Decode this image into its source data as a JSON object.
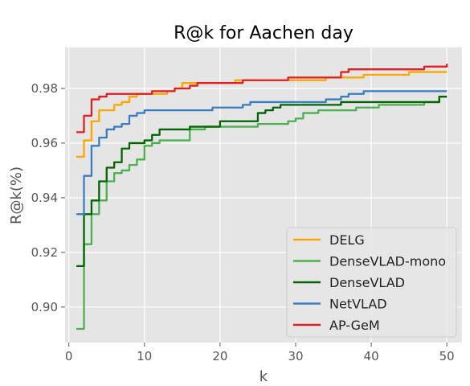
{
  "chart_data": {
    "type": "line",
    "title": "R@k for Aachen day",
    "xlabel": "k",
    "ylabel": "R@k(%)",
    "xlim": [
      -0.5,
      52
    ],
    "ylim": [
      0.887,
      0.995
    ],
    "xticks": [
      0,
      10,
      20,
      30,
      40,
      50
    ],
    "yticks": [
      0.9,
      0.92,
      0.94,
      0.96,
      0.98
    ],
    "grid": true,
    "legend_position": "lower-right",
    "background": "#e5e5e5",
    "x": [
      1,
      2,
      3,
      4,
      5,
      6,
      7,
      8,
      9,
      10,
      11,
      12,
      13,
      14,
      15,
      16,
      17,
      18,
      19,
      20,
      21,
      22,
      23,
      24,
      25,
      26,
      27,
      28,
      29,
      30,
      31,
      32,
      33,
      34,
      35,
      36,
      37,
      38,
      39,
      40,
      41,
      42,
      43,
      44,
      45,
      46,
      47,
      48,
      49,
      50
    ],
    "series": [
      {
        "name": "DELG",
        "color": "#ffa500",
        "values": [
          0.955,
          0.961,
          0.968,
          0.972,
          0.972,
          0.974,
          0.975,
          0.977,
          0.978,
          0.978,
          0.978,
          0.978,
          0.979,
          0.98,
          0.982,
          0.982,
          0.982,
          0.982,
          0.982,
          0.982,
          0.982,
          0.983,
          0.983,
          0.983,
          0.983,
          0.983,
          0.983,
          0.983,
          0.983,
          0.983,
          0.983,
          0.983,
          0.983,
          0.984,
          0.984,
          0.984,
          0.984,
          0.984,
          0.985,
          0.985,
          0.985,
          0.985,
          0.985,
          0.985,
          0.986,
          0.986,
          0.986,
          0.986,
          0.986,
          0.986
        ]
      },
      {
        "name": "DenseVLAD-mono",
        "color": "#4caf50",
        "values": [
          0.892,
          0.923,
          0.934,
          0.939,
          0.946,
          0.949,
          0.95,
          0.952,
          0.954,
          0.959,
          0.96,
          0.961,
          0.961,
          0.961,
          0.961,
          0.965,
          0.965,
          0.966,
          0.966,
          0.966,
          0.966,
          0.966,
          0.966,
          0.966,
          0.967,
          0.967,
          0.967,
          0.967,
          0.968,
          0.969,
          0.971,
          0.971,
          0.972,
          0.972,
          0.972,
          0.972,
          0.972,
          0.973,
          0.973,
          0.973,
          0.974,
          0.974,
          0.974,
          0.974,
          0.974,
          0.974,
          0.975,
          0.975,
          0.977,
          0.977
        ]
      },
      {
        "name": "DenseVLAD",
        "color": "#006400",
        "values": [
          0.915,
          0.934,
          0.939,
          0.946,
          0.951,
          0.953,
          0.958,
          0.96,
          0.96,
          0.961,
          0.963,
          0.965,
          0.965,
          0.965,
          0.965,
          0.966,
          0.966,
          0.966,
          0.966,
          0.968,
          0.968,
          0.968,
          0.968,
          0.968,
          0.971,
          0.972,
          0.973,
          0.974,
          0.974,
          0.974,
          0.974,
          0.974,
          0.974,
          0.974,
          0.974,
          0.975,
          0.975,
          0.975,
          0.975,
          0.975,
          0.975,
          0.975,
          0.975,
          0.975,
          0.975,
          0.975,
          0.975,
          0.975,
          0.977,
          0.977
        ]
      },
      {
        "name": "NetVLAD",
        "color": "#3a7ebf",
        "values": [
          0.934,
          0.948,
          0.959,
          0.962,
          0.965,
          0.966,
          0.967,
          0.97,
          0.971,
          0.972,
          0.972,
          0.972,
          0.972,
          0.972,
          0.972,
          0.972,
          0.972,
          0.972,
          0.973,
          0.973,
          0.973,
          0.973,
          0.974,
          0.975,
          0.975,
          0.975,
          0.975,
          0.975,
          0.975,
          0.975,
          0.975,
          0.975,
          0.975,
          0.976,
          0.976,
          0.977,
          0.978,
          0.978,
          0.979,
          0.979,
          0.979,
          0.979,
          0.979,
          0.979,
          0.979,
          0.979,
          0.979,
          0.979,
          0.979,
          0.979
        ]
      },
      {
        "name": "AP-GeM",
        "color": "#e02020",
        "values": [
          0.964,
          0.97,
          0.976,
          0.977,
          0.978,
          0.978,
          0.978,
          0.978,
          0.978,
          0.978,
          0.979,
          0.979,
          0.979,
          0.98,
          0.98,
          0.981,
          0.982,
          0.982,
          0.982,
          0.982,
          0.982,
          0.982,
          0.983,
          0.983,
          0.983,
          0.983,
          0.983,
          0.983,
          0.984,
          0.984,
          0.984,
          0.984,
          0.984,
          0.984,
          0.984,
          0.986,
          0.987,
          0.987,
          0.987,
          0.987,
          0.987,
          0.987,
          0.987,
          0.987,
          0.987,
          0.987,
          0.988,
          0.988,
          0.988,
          0.989
        ]
      }
    ]
  }
}
